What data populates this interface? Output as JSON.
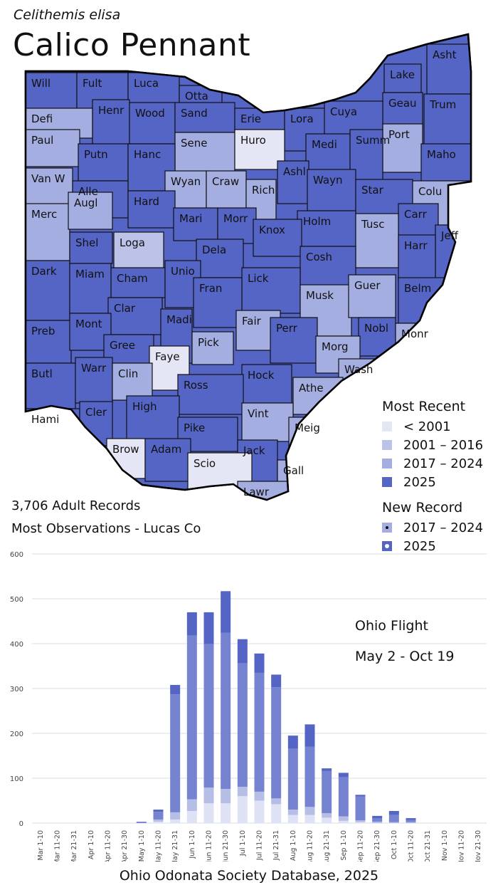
{
  "header": {
    "scientific_name": "Celithemis elisa",
    "common_name": "Calico Pennant"
  },
  "stats": {
    "records": "3,706 Adult Records",
    "most_obs": "Most Observations - Lucas Co"
  },
  "colors": {
    "pre2001": "#e4e6f6",
    "y2001_2016": "#bcc2e8",
    "y2017_2024": "#a5aee0",
    "y2025": "#5565c6"
  },
  "legend": {
    "most_recent_title": "Most Recent",
    "most_recent": [
      {
        "label": "< 2001",
        "color": "#e4e6f6"
      },
      {
        "label": "2001 – 2016",
        "color": "#bcc2e8"
      },
      {
        "label": "2017 – 2024",
        "color": "#a5aee0"
      },
      {
        "label": "2025",
        "color": "#5565c6"
      }
    ],
    "new_record_title": "New Record",
    "new_record": [
      {
        "label": "2017 – 2024",
        "color": "#a5aee0"
      },
      {
        "label": "2025",
        "color": "#5565c6"
      }
    ]
  },
  "counties": [
    {
      "name": "Will",
      "cat": "y2025"
    },
    {
      "name": "Fult",
      "cat": "y2025"
    },
    {
      "name": "Luca",
      "cat": "y2025"
    },
    {
      "name": "Otta",
      "cat": "y2025"
    },
    {
      "name": "Asht",
      "cat": "y2025"
    },
    {
      "name": "Lake",
      "cat": "y2025"
    },
    {
      "name": "Geau",
      "cat": "y2025"
    },
    {
      "name": "Trum",
      "cat": "y2025"
    },
    {
      "name": "Defi",
      "cat": "y2017_2024"
    },
    {
      "name": "Henr",
      "cat": "y2025"
    },
    {
      "name": "Wood",
      "cat": "y2025"
    },
    {
      "name": "Sand",
      "cat": "y2025"
    },
    {
      "name": "Erie",
      "cat": "y2025"
    },
    {
      "name": "Lora",
      "cat": "y2025"
    },
    {
      "name": "Cuya",
      "cat": "y2025"
    },
    {
      "name": "Port",
      "cat": "y2017_2024"
    },
    {
      "name": "Paul",
      "cat": "y2017_2024"
    },
    {
      "name": "Sene",
      "cat": "y2017_2024"
    },
    {
      "name": "Huro",
      "cat": "pre2001"
    },
    {
      "name": "Medi",
      "cat": "y2025"
    },
    {
      "name": "Summ",
      "cat": "y2025"
    },
    {
      "name": "Putn",
      "cat": "y2025"
    },
    {
      "name": "Hanc",
      "cat": "y2025"
    },
    {
      "name": "Maho",
      "cat": "y2025"
    },
    {
      "name": "Van W",
      "cat": "y2017_2024"
    },
    {
      "name": "Wyan",
      "cat": "y2017_2024"
    },
    {
      "name": "Craw",
      "cat": "y2017_2024"
    },
    {
      "name": "Ashl",
      "cat": "y2025"
    },
    {
      "name": "Wayn",
      "cat": "y2025"
    },
    {
      "name": "Alle",
      "cat": "y2025"
    },
    {
      "name": "Rich",
      "cat": "y2017_2024"
    },
    {
      "name": "Star",
      "cat": "y2025"
    },
    {
      "name": "Colu",
      "cat": "y2017_2024"
    },
    {
      "name": "Hard",
      "cat": "y2025"
    },
    {
      "name": "Merc",
      "cat": "y2017_2024"
    },
    {
      "name": "Augl",
      "cat": "y2017_2024"
    },
    {
      "name": "Mari",
      "cat": "y2025"
    },
    {
      "name": "Morr",
      "cat": "y2025"
    },
    {
      "name": "Holm",
      "cat": "y2025"
    },
    {
      "name": "Carr",
      "cat": "y2025"
    },
    {
      "name": "Tusc",
      "cat": "y2017_2024"
    },
    {
      "name": "Jeff",
      "cat": "y2025"
    },
    {
      "name": "Knox",
      "cat": "y2025"
    },
    {
      "name": "Loga",
      "cat": "y2001_2016"
    },
    {
      "name": "Shel",
      "cat": "y2025"
    },
    {
      "name": "Dela",
      "cat": "y2025"
    },
    {
      "name": "Cosh",
      "cat": "y2025"
    },
    {
      "name": "Harr",
      "cat": "y2025"
    },
    {
      "name": "Dark",
      "cat": "y2025"
    },
    {
      "name": "Cham",
      "cat": "y2025"
    },
    {
      "name": "Unio",
      "cat": "y2025"
    },
    {
      "name": "Lick",
      "cat": "y2025"
    },
    {
      "name": "Miam",
      "cat": "y2025"
    },
    {
      "name": "Musk",
      "cat": "y2017_2024"
    },
    {
      "name": "Guer",
      "cat": "y2017_2024"
    },
    {
      "name": "Belm",
      "cat": "y2025"
    },
    {
      "name": "Fran",
      "cat": "y2025"
    },
    {
      "name": "Clar",
      "cat": "y2025"
    },
    {
      "name": "Fair",
      "cat": "y2017_2024"
    },
    {
      "name": "Madi",
      "cat": "y2025"
    },
    {
      "name": "Preb",
      "cat": "y2025"
    },
    {
      "name": "Mont",
      "cat": "y2025"
    },
    {
      "name": "Perr",
      "cat": "y2025"
    },
    {
      "name": "Nobl",
      "cat": "y2025"
    },
    {
      "name": "Monr",
      "cat": "y2017_2024"
    },
    {
      "name": "Gree",
      "cat": "y2025"
    },
    {
      "name": "Pick",
      "cat": "y2017_2024"
    },
    {
      "name": "Morg",
      "cat": "y2017_2024"
    },
    {
      "name": "Faye",
      "cat": "pre2001"
    },
    {
      "name": "Butl",
      "cat": "y2025"
    },
    {
      "name": "Warr",
      "cat": "y2025"
    },
    {
      "name": "Clin",
      "cat": "y2017_2024"
    },
    {
      "name": "Hock",
      "cat": "y2025"
    },
    {
      "name": "Wash",
      "cat": "y2017_2024"
    },
    {
      "name": "Ross",
      "cat": "y2025"
    },
    {
      "name": "Athe",
      "cat": "y2017_2024"
    },
    {
      "name": "High",
      "cat": "y2025"
    },
    {
      "name": "Vint",
      "cat": "y2017_2024"
    },
    {
      "name": "Hami",
      "cat": "y2025"
    },
    {
      "name": "Cler",
      "cat": "y2025"
    },
    {
      "name": "Meig",
      "cat": "y2017_2024"
    },
    {
      "name": "Pike",
      "cat": "y2025"
    },
    {
      "name": "Jack",
      "cat": "y2025"
    },
    {
      "name": "Brow",
      "cat": "pre2001"
    },
    {
      "name": "Adam",
      "cat": "y2025"
    },
    {
      "name": "Scio",
      "cat": "pre2001"
    },
    {
      "name": "Gall",
      "cat": "y2017_2024"
    },
    {
      "name": "Lawr",
      "cat": "y2017_2024"
    }
  ],
  "annotation": {
    "line1": "Ohio Flight",
    "line2": "May 2 - Oct 19"
  },
  "chart_data": {
    "type": "bar",
    "stacked": true,
    "categories": [
      "Mar 1-10",
      "Mar 11-20",
      "Mar 21-31",
      "Apr 1-10",
      "Apr 11-20",
      "Apr 21-30",
      "May 1-10",
      "May 11-20",
      "May 21-31",
      "Jun 1-10",
      "Jun 11-20",
      "Jun 21-30",
      "Jul 1-10",
      "Jul 11-20",
      "Jul 21-31",
      "Aug 1-10",
      "Aug 11-20",
      "Aug 21-31",
      "Sep 1-10",
      "Sep 11-20",
      "Sep 21-30",
      "Oct 1-10",
      "Oct 11-20",
      "Oct 21-31",
      "Nov 1-10",
      "Nov 11-20",
      "Nov 21-30"
    ],
    "series": [
      {
        "color": "#dfe2f4",
        "values": [
          0,
          0,
          0,
          0,
          0,
          0,
          0,
          3,
          8,
          27,
          44,
          44,
          60,
          50,
          42,
          18,
          18,
          12,
          5,
          2,
          0,
          0,
          0,
          0,
          0,
          0,
          0
        ]
      },
      {
        "color": "#b7bee6",
        "values": [
          0,
          0,
          0,
          0,
          0,
          0,
          0,
          5,
          16,
          26,
          35,
          32,
          21,
          20,
          13,
          12,
          18,
          10,
          10,
          4,
          3,
          2,
          2,
          0,
          0,
          0,
          0
        ]
      },
      {
        "color": "#7583d0",
        "values": [
          0,
          0,
          0,
          0,
          0,
          0,
          2,
          17,
          263,
          365,
          320,
          348,
          275,
          265,
          248,
          136,
          134,
          94,
          87,
          53,
          7,
          16,
          5,
          0,
          0,
          0,
          0
        ]
      },
      {
        "color": "#5565c6",
        "values": [
          0,
          0,
          0,
          0,
          0,
          0,
          1,
          5,
          21,
          52,
          71,
          93,
          54,
          43,
          28,
          29,
          50,
          6,
          10,
          4,
          6,
          9,
          4,
          0,
          0,
          0,
          0
        ]
      }
    ],
    "ylim": [
      0,
      600
    ],
    "yticks": [
      0,
      100,
      200,
      300,
      400,
      500,
      600
    ],
    "grid": true,
    "footer": "Ohio Odonata Society Database, 2025"
  }
}
